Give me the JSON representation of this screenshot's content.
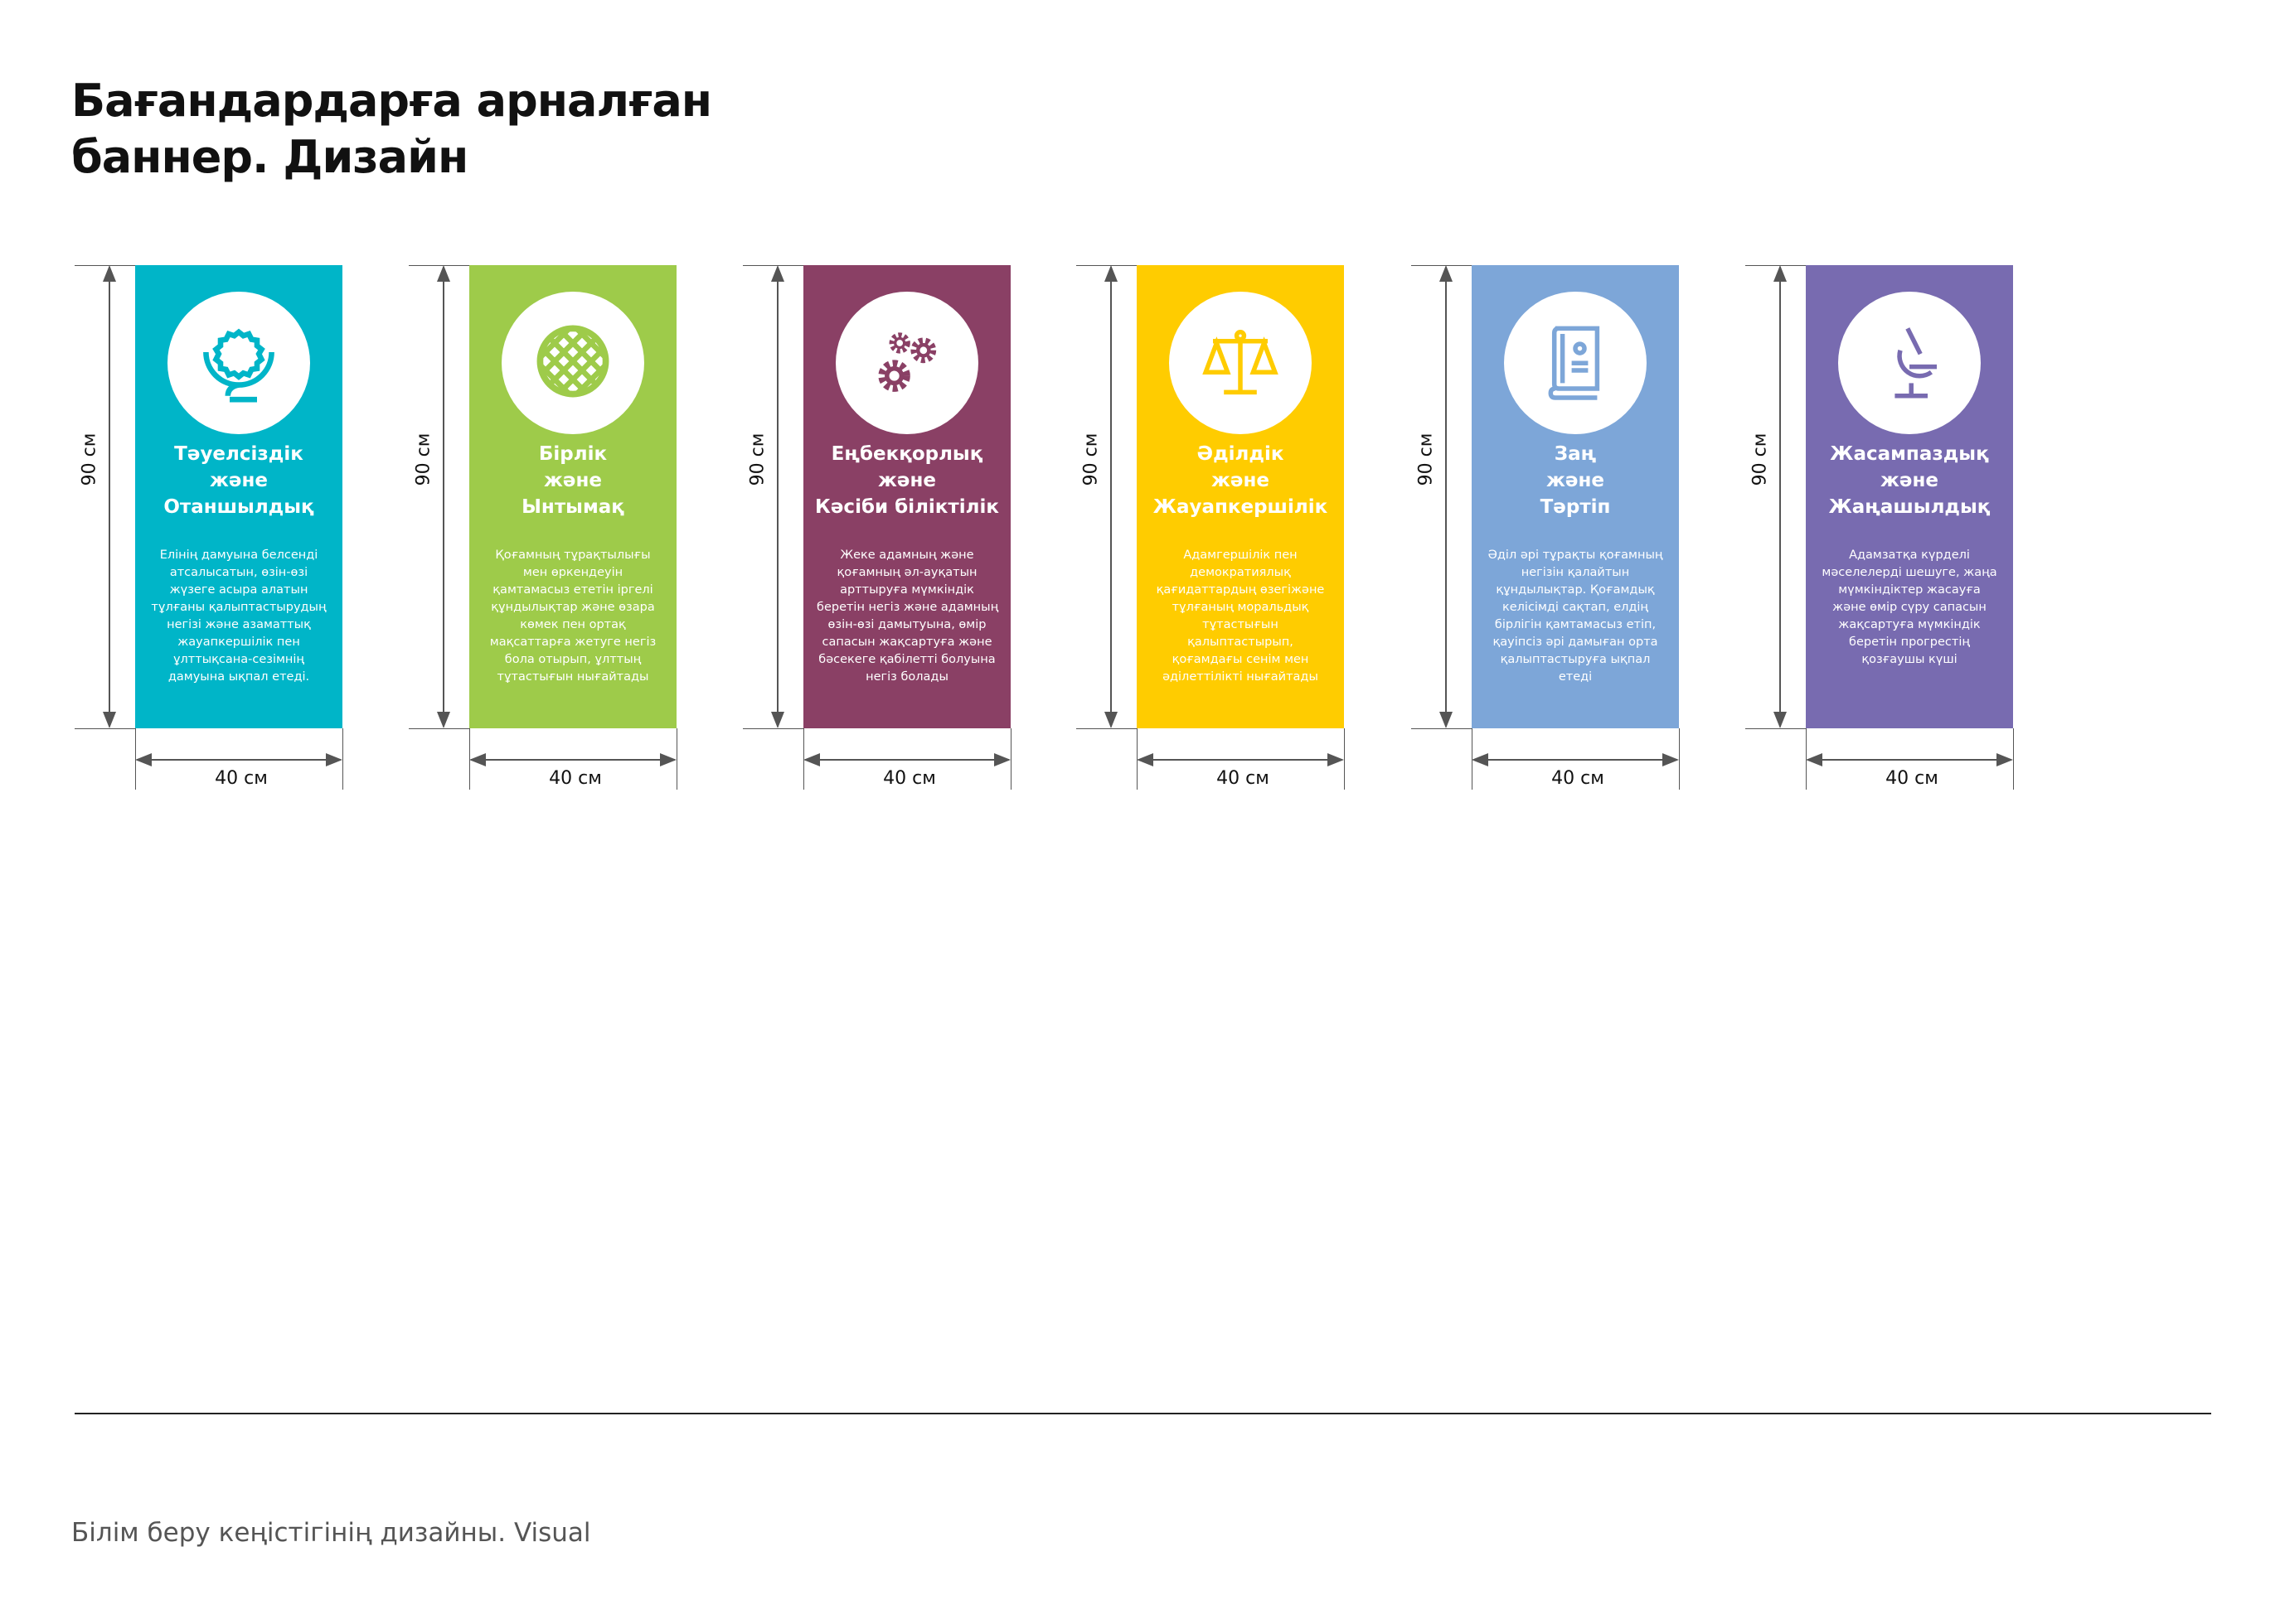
{
  "header": {
    "title_line1": "Бағандардарға арналған",
    "title_line2": "баннер. Дизайн"
  },
  "banners": [
    {
      "color": "#00B5C8",
      "icon": "globe-icon",
      "height_label": "90 см",
      "width_label": "40 см",
      "title": [
        "Тәуелсіздік",
        "және",
        "Отаншылдық"
      ],
      "description": [
        "Елінің дамуына белсенді",
        "атсалысатын, өзін-өзі",
        "жүзеге асыра алатын",
        "тұлғаны қалыптастырудың",
        "негізі және азаматтық",
        "жауапкершілік пен",
        "ұлттықсана-сезімнің",
        "дамуына ықпал етеді."
      ]
    },
    {
      "color": "#9ECB4A",
      "icon": "shanyrak-icon",
      "height_label": "90 см",
      "width_label": "40 см",
      "title": [
        "Бірлік",
        "және",
        "Ынтымақ"
      ],
      "description": [
        "Қоғамның тұрақтылығы",
        "мен өркендеуін",
        "қамтамасыз ететін іргелі",
        "құндылықтар және өзара",
        "көмек пен ортақ",
        "мақсаттарға жетуге негіз",
        "бола отырып, ұлттың",
        "тұтастығын нығайтады"
      ]
    },
    {
      "color": "#8A4065",
      "icon": "gears-icon",
      "height_label": "90 см",
      "width_label": "40 см",
      "title": [
        "Еңбекқорлық",
        "және",
        "Кәсіби біліктілік"
      ],
      "description": [
        "Жеке адамның және",
        "қоғамның әл-ауқатын",
        "арттыруға мүмкіндік",
        "беретін негіз және адамның",
        "өзін-өзі дамытуына, өмір",
        "сапасын жақсартуға және",
        "бәсекеге қабілетті болуына",
        "негіз болады"
      ]
    },
    {
      "color": "#FFCC00",
      "icon": "scales-icon",
      "height_label": "90 см",
      "width_label": "40 см",
      "title": [
        "Әділдік",
        "және",
        "Жауапкершілік"
      ],
      "description": [
        "Адамгершілік пен",
        "демократиялық",
        "қағидаттардың өзегіжәне",
        "тұлғаның моральдық",
        "тұтастығын",
        "қалыптастырып,",
        "қоғамдағы сенім мен",
        "әділеттілікті нығайтады"
      ]
    },
    {
      "color": "#7DA6D8",
      "icon": "law-book-icon",
      "height_label": "90 см",
      "width_label": "40 см",
      "title": [
        "Заң",
        "және",
        "Тәртіп"
      ],
      "description": [
        "Әділ әрі тұрақты қоғамның",
        "негізін қалайтын",
        "құндылықтар. Қоғамдық",
        "келісімді сақтап, елдің",
        "бірлігін қамтамасыз етіп,",
        "қауіпсіз әрі дамыған орта",
        "қалыптастыруға ықпал",
        "етеді"
      ]
    },
    {
      "color": "#786BB0",
      "icon": "microscope-icon",
      "height_label": "90 см",
      "width_label": "40 см",
      "title": [
        "Жасампаздық",
        "және",
        "Жаңашылдық"
      ],
      "description": [
        "Адамзатқа күрделі",
        "мәселелерді шешуге, жаңа",
        "мүмкіндіктер жасауға",
        "және өмір сүру сапасын",
        "жақсартуға мүмкіндік",
        "беретін прогрестің",
        "қозғаушы күші"
      ]
    }
  ],
  "footer": {
    "text": "Білім беру кеңістігінің дизайны. Visual"
  }
}
